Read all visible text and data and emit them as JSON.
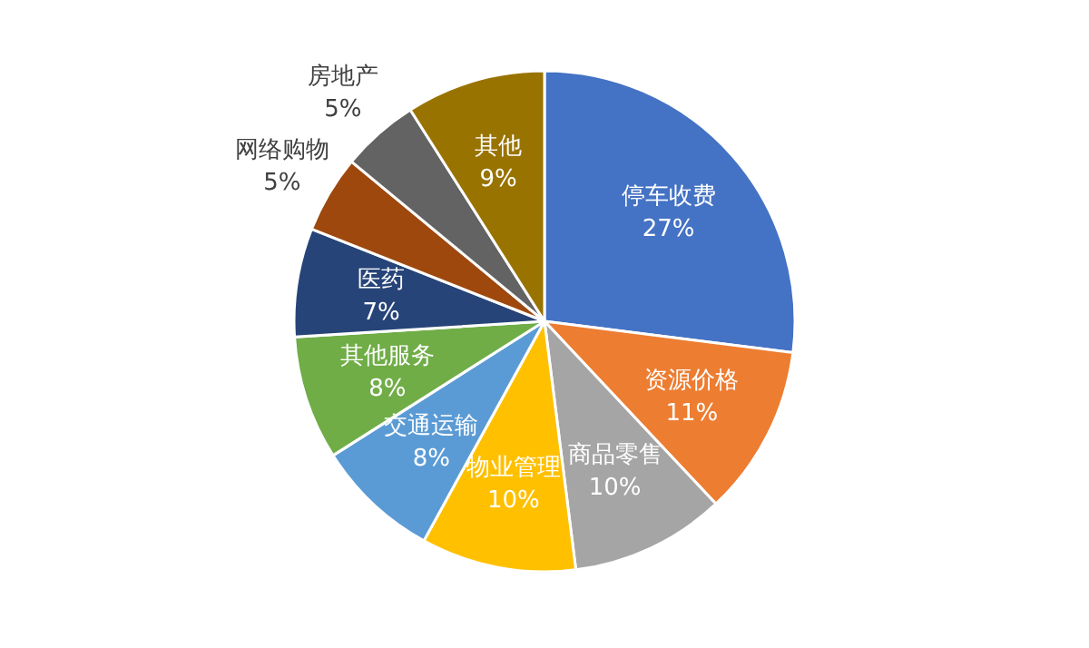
{
  "chart_data": {
    "type": "pie",
    "categories": [
      "停车收费",
      "资源价格",
      "商品零售",
      "物业管理",
      "交通运输",
      "其他服务",
      "医药",
      "网络购物",
      "房地产",
      "其他"
    ],
    "values": [
      27,
      11,
      10,
      10,
      8,
      8,
      7,
      5,
      5,
      9
    ],
    "value_labels": [
      "27%",
      "11%",
      "10%",
      "10%",
      "8%",
      "8%",
      "7%",
      "5%",
      "5%",
      "9%"
    ],
    "colors": [
      "#4472c4",
      "#ed7d31",
      "#a5a5a5",
      "#ffc000",
      "#5b9bd5",
      "#70ad47",
      "#264478",
      "#9e480e",
      "#636363",
      "#997300"
    ]
  }
}
